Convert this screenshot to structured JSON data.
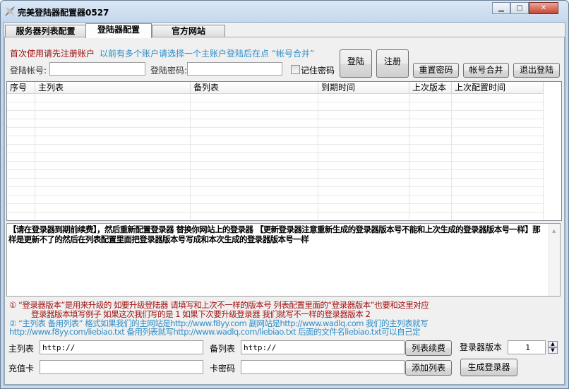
{
  "window": {
    "title": "完美登陆器配置器0527",
    "controls": [
      "minimize",
      "maximize",
      "close"
    ]
  },
  "tabs": [
    {
      "label": "服务器列表配置",
      "active": false
    },
    {
      "label": "登陆器配置",
      "active": true
    },
    {
      "label": "官方网站",
      "active": false
    }
  ],
  "login": {
    "notice_red": "首次使用请先注册账户",
    "notice_blue": "以前有多个账户请选择一个主账户登陆后在点 “帐号合并”",
    "account_label": "登陆帐号:",
    "account_value": "",
    "password_label": "登陆密码:",
    "password_value": "",
    "remember_label": "记住密码",
    "remember_checked": false,
    "login_button": "登陆",
    "register_button": "注册",
    "reset_password_button": "重置密码",
    "merge_button": "帐号合并",
    "logout_button": "退出登陆"
  },
  "table": {
    "columns": [
      "序号",
      "主列表",
      "备列表",
      "到期时间",
      "上次版本",
      "上次配置时间"
    ],
    "rows": []
  },
  "memo": "【请在登录器到期前续费】，然后重新配置登录器 替换你网站上的登录器 【更新登录器注意重新生成的登录器版本号不能和上次生成的登录器版本号一样】那样是更新不了的然后在列表配置里面把登录器版本号写成和本次生成的登录器版本号一样",
  "notes": [
    {
      "text": "①  “登录器版本”是用来升级的 如要升级登陆器 请填写和上次不一样的版本号 列表配置里面的“登录器版本”也要和这里对应",
      "color": "#a01010"
    },
    {
      "text": "登录器版本填写例子 如果这次我们写的是 1 如果下次要升级登录器 我们就写不一样的登录器版本 2",
      "color": "#a01010"
    },
    {
      "text": "②  “主列表 备用列表” 格式如果我们的主网站是http://www.f8yy.com 副网站是http://www.wadlq.com 我们的主列表就写",
      "color": "#2e8ec7"
    },
    {
      "text": "http://www.f8yy.com/liebiao.txt 备用列表就写http://www.wadlq.com/liebiao.txt 后面的文件名liebiao.txt可以自己定",
      "color": "#2e8ec7"
    }
  ],
  "form": {
    "main_list_label": "主列表",
    "main_list_value": "http://",
    "backup_list_label": "备列表",
    "backup_list_value": "http://",
    "renew_button": "列表续费",
    "version_label": "登录器版本",
    "version_value": "1",
    "card_label": "充值卡",
    "card_value": "",
    "card_password_label": "卡密码",
    "card_password_value": "",
    "add_list_button": "添加列表",
    "generate_button": "生成登录器"
  }
}
